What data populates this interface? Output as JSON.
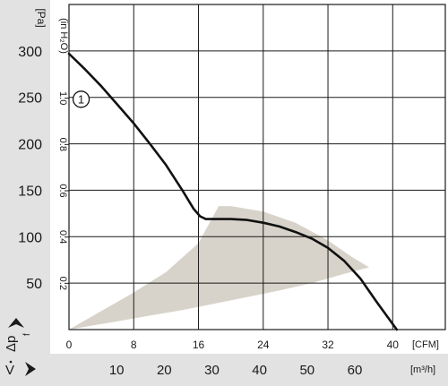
{
  "chart_data": {
    "type": "line",
    "pressure_unit": "[Pa]",
    "pressure_unit_alt": "(in H₂O)",
    "pressure_symbol": "Δp",
    "pressure_subscript": "f",
    "flow_symbol": "V",
    "flow_unit_cfm": "[CFM]",
    "flow_unit_m3h": "[m³/h]",
    "curve_marker": "1",
    "cfm_ticks": [
      0,
      8,
      16,
      24,
      32,
      40
    ],
    "m3h_ticks": [
      10,
      20,
      30,
      40,
      50,
      60
    ],
    "pa_ticks": [
      50,
      100,
      150,
      200,
      250,
      300
    ],
    "inh2o_ticks": [
      "0.2",
      "0.4",
      "0.6",
      "0.8",
      "1.0"
    ],
    "xlim_cfm": [
      0,
      46.5
    ],
    "ylim_pa": [
      0,
      350
    ],
    "grid": true,
    "series": [
      {
        "x": [
          0,
          2,
          4,
          6,
          8,
          10,
          12,
          14,
          15.4,
          16.2,
          16.9,
          18,
          20,
          22,
          24,
          26,
          28,
          30,
          32,
          34,
          36,
          38,
          40.5
        ],
        "y": [
          297,
          280,
          262,
          242,
          222,
          200,
          177,
          150,
          130,
          122,
          119,
          119,
          119,
          118,
          115,
          111,
          105,
          98,
          88,
          74,
          55,
          30,
          0
        ]
      }
    ],
    "operating_area": {
      "x": [
        0,
        4,
        8,
        12,
        16,
        18.5,
        20,
        24,
        28,
        32,
        35,
        37.1,
        34,
        30,
        26,
        22,
        18,
        14,
        10,
        6,
        2,
        0
      ],
      "y": [
        0,
        20,
        40,
        62,
        93,
        133,
        133,
        127,
        115,
        96,
        78,
        67,
        60,
        50,
        42,
        35,
        28,
        21,
        15,
        9,
        3,
        0
      ]
    }
  }
}
